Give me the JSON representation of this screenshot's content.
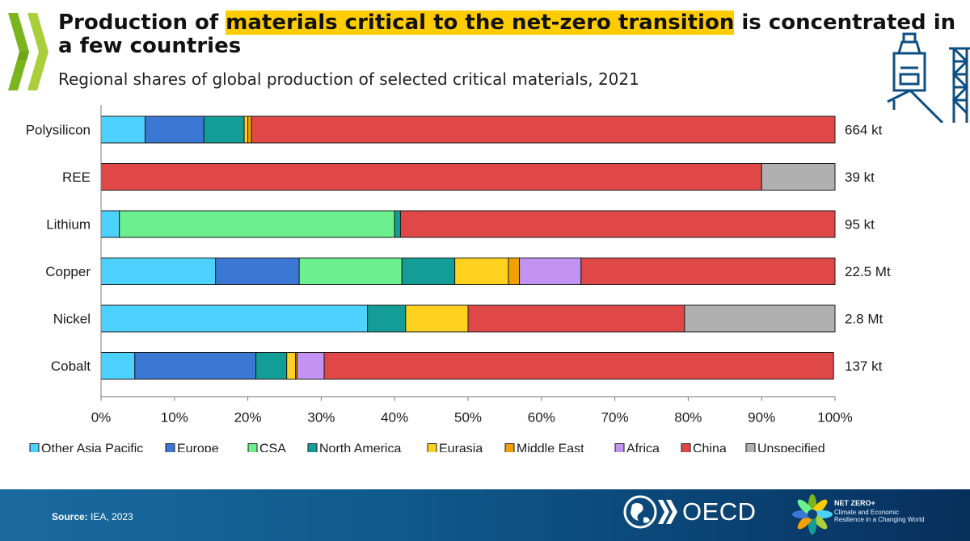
{
  "header": {
    "title_pre": "Production of ",
    "title_highlight": "materials critical to the net-zero transition",
    "title_post": " is concentrated in a few countries",
    "subtitle": "Regional shares of global production of selected critical materials, 2021"
  },
  "chart_data": {
    "type": "bar",
    "orientation": "horizontal",
    "stacked": true,
    "categories": [
      "Polysilicon",
      "REE",
      "Lithium",
      "Copper",
      "Nickel",
      "Cobalt"
    ],
    "totals": [
      "664 kt",
      "39 kt",
      "95 kt",
      "22.5 Mt",
      "2.8 Mt",
      "137 kt"
    ],
    "series": [
      {
        "name": "Other Asia Pacific",
        "color": "#4dd2ff",
        "values": [
          6,
          0,
          2.5,
          15.6,
          36.3,
          4.6
        ]
      },
      {
        "name": "Europe",
        "color": "#3a78d4",
        "values": [
          8,
          0,
          0,
          11.4,
          0,
          16.5
        ]
      },
      {
        "name": "CSA",
        "color": "#6cf08f",
        "values": [
          0,
          0,
          37.5,
          14,
          0,
          0
        ]
      },
      {
        "name": "North America",
        "color": "#129e96",
        "values": [
          5.5,
          0,
          0.8,
          7.2,
          5.2,
          4.2
        ]
      },
      {
        "name": "Eurasia",
        "color": "#ffd21f",
        "values": [
          0.5,
          0,
          0,
          7.3,
          8.5,
          1.2
        ]
      },
      {
        "name": "Middle East",
        "color": "#f0a000",
        "values": [
          0.5,
          0,
          0,
          1.5,
          0,
          0.2
        ]
      },
      {
        "name": "Africa",
        "color": "#c293f2",
        "values": [
          0,
          0,
          0,
          8.4,
          0,
          3.7
        ]
      },
      {
        "name": "China",
        "color": "#e04848",
        "values": [
          79.5,
          90,
          59.2,
          34.6,
          29.5,
          69.4
        ]
      },
      {
        "name": "Unspecified",
        "color": "#b0b0b0",
        "values": [
          0,
          10,
          0,
          0,
          20.5,
          0
        ]
      }
    ],
    "xlim": [
      0,
      100
    ],
    "xticks": [
      "0%",
      "10%",
      "20%",
      "30%",
      "40%",
      "50%",
      "60%",
      "70%",
      "80%",
      "90%",
      "100%"
    ],
    "legend_position": "bottom",
    "grid": false
  },
  "footer": {
    "source_label": "Source:",
    "source_text": " IEA, 2023",
    "oecd_label": "OECD",
    "netzero_title": "NET ZERO+",
    "netzero_sub1": "Climate and Economic",
    "netzero_sub2": "Resilience in a Changing World"
  },
  "icons": [
    "chevron-logo-icon",
    "mine-structure-icon",
    "oecd-globe-icon",
    "netzero-flower-icon"
  ]
}
